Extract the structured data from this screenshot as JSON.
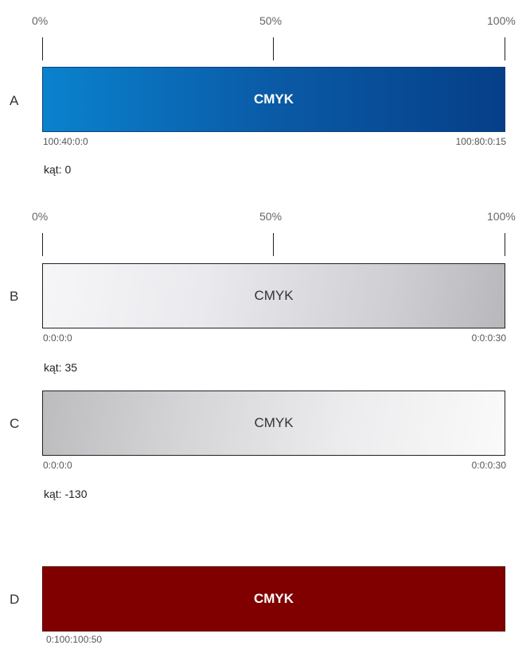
{
  "scale_top": {
    "left": "0%",
    "mid": "50%",
    "right": "100%"
  },
  "scale_mid": {
    "left": "0%",
    "mid": "50%",
    "right": "100%"
  },
  "rows": {
    "a": {
      "letter": "A",
      "label": "CMYK",
      "start": "100:40:0:0",
      "end": "100:80:0:15",
      "angle": "kąt: 0"
    },
    "b": {
      "letter": "B",
      "label": "CMYK",
      "start": "0:0:0:0",
      "end": "0:0:0:30",
      "angle": "kąt: 35"
    },
    "c": {
      "letter": "C",
      "label": "CMYK",
      "start": "0:0:0:0",
      "end": "0:0:0:30",
      "angle": "kąt: -130"
    },
    "d": {
      "letter": "D",
      "label": "CMYK",
      "value": "0:100:100:50"
    }
  },
  "colors": {
    "a_start": "#0a82ce",
    "a_end": "#063f88",
    "b_start": "#f6f6f8",
    "b_end": "#b8b8bc",
    "d_fill": "#800000"
  }
}
